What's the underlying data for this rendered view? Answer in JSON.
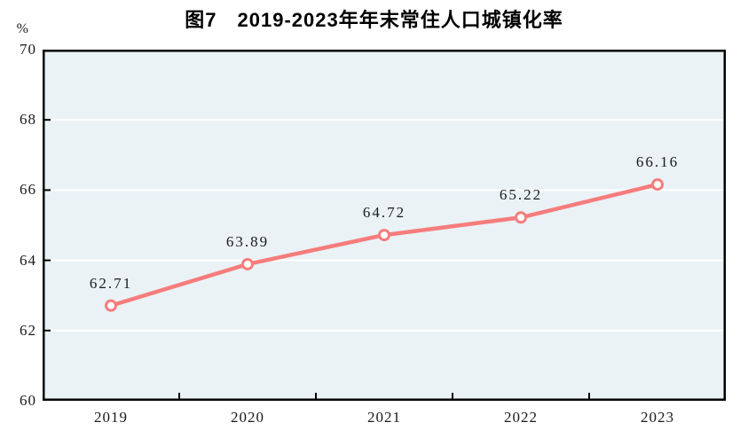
{
  "header": {
    "title": "图7　2019-2023年年末常住人口城镇化率"
  },
  "chart_data": {
    "type": "line",
    "title": "图7　2019-2023年年末常住人口城镇化率",
    "categories": [
      "2019",
      "2020",
      "2021",
      "2022",
      "2023"
    ],
    "values": [
      62.71,
      63.89,
      64.72,
      65.22,
      66.16
    ],
    "data_labels": [
      "62.71",
      "63.89",
      "64.72",
      "65.22",
      "66.16"
    ],
    "xlabel": "",
    "ylabel": "%",
    "ylim": [
      60,
      70
    ],
    "yticks": [
      60,
      62,
      64,
      66,
      68,
      70
    ],
    "grid": "horizontal",
    "legend": "none",
    "marker": "open-circle",
    "colors": {
      "line": "#f67c7c",
      "marker_fill": "#ffffff",
      "plot_background": "#eaf2f6",
      "gridline": "#ffffff",
      "axis": "#000000",
      "text": "#1a1a1a",
      "page_background": "#ffffff"
    }
  }
}
